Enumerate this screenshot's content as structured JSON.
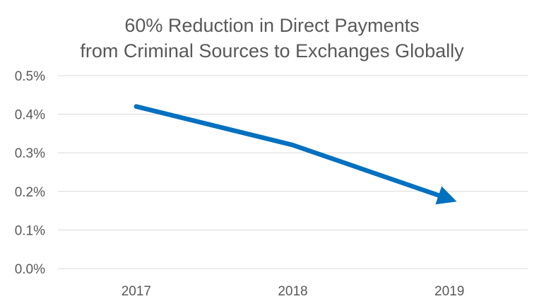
{
  "chart_data": {
    "type": "line",
    "title": "60% Reduction in Direct Payments from Criminal Sources to Exchanges Globally",
    "title_lines": [
      "60% Reduction in Direct Payments",
      "from Criminal Sources to Exchanges Globally"
    ],
    "categories": [
      "2017",
      "2018",
      "2019"
    ],
    "series": [
      {
        "values": [
          0.42,
          0.32,
          0.18
        ]
      }
    ],
    "ylim": [
      0,
      0.5
    ],
    "yticks": [
      0.0,
      0.1,
      0.2,
      0.3,
      0.4,
      0.5
    ],
    "ytick_labels": [
      "0.0%",
      "0.1%",
      "0.2%",
      "0.3%",
      "0.4%",
      "0.5%"
    ],
    "xlabel": "",
    "ylabel": "",
    "grid": true,
    "line_end": "arrow",
    "colors": {
      "series": "#0070C0",
      "grid": "#D9D9D9",
      "text": "#595959"
    }
  }
}
